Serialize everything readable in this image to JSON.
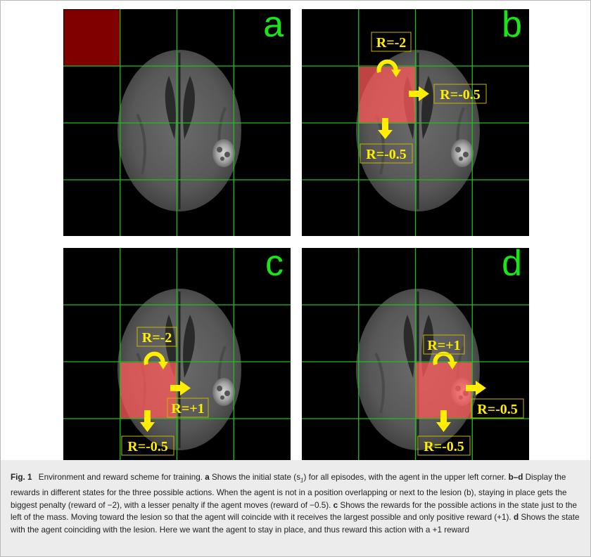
{
  "colors": {
    "grid": "#1fbf1f",
    "agent_initial": "#800000",
    "agent_overlay": "#ff5a5a",
    "arrow": "#ffee00",
    "letter": "#19e619",
    "label_box_stroke": "#c8b400"
  },
  "panels": [
    {
      "letter": "a",
      "labels": []
    },
    {
      "letter": "b",
      "labels": [
        "R=-2",
        "R=-0.5",
        "R=-0.5"
      ]
    },
    {
      "letter": "c",
      "labels": [
        "R=-2",
        "R=+1",
        "R=-0.5"
      ]
    },
    {
      "letter": "d",
      "labels": [
        "R=+1",
        "R=-0.5",
        "R=-0.5"
      ]
    }
  ],
  "caption": {
    "fig_label": "Fig. 1",
    "p1": "Environment and reward scheme for training.",
    "a": "a",
    "p2": "Shows the initial state (s",
    "sub": "1",
    "p3": ") for all episodes, with the agent in the upper left corner.",
    "bd": "b–d",
    "p4": "Display the rewards in different states for the three possible actions. When the agent is not in a position overlapping or next to the lesion (b), staying in place gets the biggest penalty (reward of −2), with a lesser penalty if the agent moves (reward of −0.5).",
    "c": "c",
    "p5": "Shows the rewards for the possible actions in the state just to the left of the mass. Moving toward the lesion so that the agent will coincide with it receives the largest possible and only positive reward (+1).",
    "d": "d",
    "p6": "Shows the state with the agent coinciding with the lesion. Here we want the agent to stay in place, and thus reward this action with a +1 reward"
  }
}
